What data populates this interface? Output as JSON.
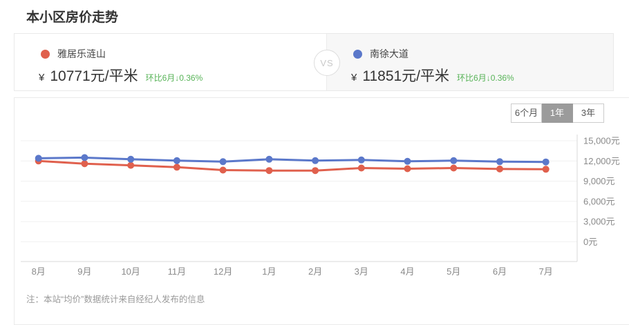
{
  "page": {
    "title": "本小区房价走势"
  },
  "colors": {
    "red": "#e0604d",
    "blue": "#5b78ca",
    "green": "#57b357",
    "selected_button_bg": "#9b9b9b",
    "grid": "#f0f0f0",
    "axis": "#d9d9d9",
    "axis_label": "#8a8a8a"
  },
  "compare": {
    "vs_label": "VS",
    "left": {
      "name": "雅居乐涟山",
      "currency": "¥",
      "price": "10771元/平米",
      "mom": "环比6月↓0.36%",
      "dot_color": "#e0604d"
    },
    "right": {
      "name": "南徐大道",
      "currency": "¥",
      "price": "11851元/平米",
      "mom": "环比6月↓0.36%",
      "dot_color": "#5b78ca"
    }
  },
  "range_buttons": [
    {
      "label": "6个月",
      "selected": false
    },
    {
      "label": "1年",
      "selected": true
    },
    {
      "label": "3年",
      "selected": false
    }
  ],
  "note": "注：本站“均价”数据统计来自经纪人发布的信息",
  "chart_data": {
    "type": "line",
    "categories": [
      "8月",
      "9月",
      "10月",
      "11月",
      "12月",
      "1月",
      "2月",
      "3月",
      "4月",
      "5月",
      "6月",
      "7月"
    ],
    "series": [
      {
        "name": "雅居乐涟山",
        "color": "#e0604d",
        "values": [
          12000,
          11600,
          11350,
          11080,
          10650,
          10570,
          10570,
          10950,
          10850,
          10950,
          10810,
          10771
        ]
      },
      {
        "name": "南徐大道",
        "color": "#5b78ca",
        "values": [
          12400,
          12500,
          12250,
          12050,
          11900,
          12250,
          12050,
          12150,
          11950,
          12050,
          11894,
          11851
        ]
      }
    ],
    "title": "本小区房价走势",
    "xlabel": "",
    "ylabel": "",
    "ylim": [
      0,
      15000
    ],
    "y_ticks": [
      "15,000元",
      "12,000元",
      "9,000元",
      "6,000元",
      "3,000元",
      "0元"
    ],
    "y_tick_values": [
      15000,
      12000,
      9000,
      6000,
      3000,
      0
    ],
    "grid": true,
    "y_axis_position": "right",
    "legend_position": "top-cards"
  }
}
